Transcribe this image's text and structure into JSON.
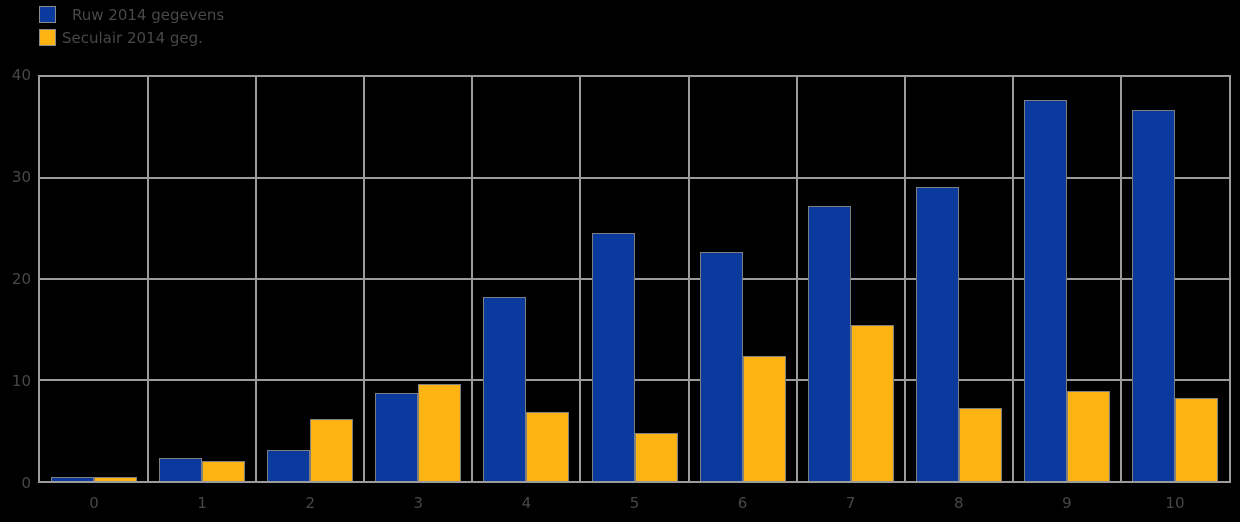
{
  "chart_data": {
    "type": "bar",
    "title": "",
    "xlabel": "",
    "ylabel": "",
    "categories": [
      "0",
      "1",
      "2",
      "3",
      "4",
      "5",
      "6",
      "7",
      "8",
      "9",
      "10"
    ],
    "series": [
      {
        "name": "Ruw 2014 gegevens",
        "color": "#0a3a9e",
        "values": [
          0.4,
          2.3,
          3.1,
          8.7,
          18.2,
          24.6,
          22.7,
          27.2,
          29.1,
          37.7,
          36.7
        ]
      },
      {
        "name": "Seculair 2014 geg.",
        "color": "#fdb413",
        "values": [
          0.4,
          2.0,
          6.1,
          9.6,
          6.8,
          4.8,
          12.4,
          15.4,
          7.2,
          8.9,
          8.2
        ]
      }
    ],
    "ylim": [
      0,
      40
    ],
    "yticks": [
      0,
      10,
      20,
      30,
      40
    ],
    "grid": true,
    "legend_position": "top-left"
  },
  "legend": {
    "items": [
      {
        "label": "Ruw 2014 gegevens",
        "swatch_color": "#0a3a9e"
      },
      {
        "label": "Seculair 2014 geg.",
        "swatch_color": "#fdb413"
      }
    ]
  },
  "axes": {
    "y_tick_labels": [
      "0",
      "10",
      "20",
      "30",
      "40"
    ],
    "x_tick_labels": [
      "0",
      "1",
      "2",
      "3",
      "4",
      "5",
      "6",
      "7",
      "8",
      "9",
      "10"
    ]
  },
  "colors": {
    "background": "#000000",
    "gridline": "#9b9b9b",
    "text": "#484848",
    "bar_edge": "#7f7f7f",
    "series1": "#0a3a9e",
    "series2": "#fdb413"
  }
}
